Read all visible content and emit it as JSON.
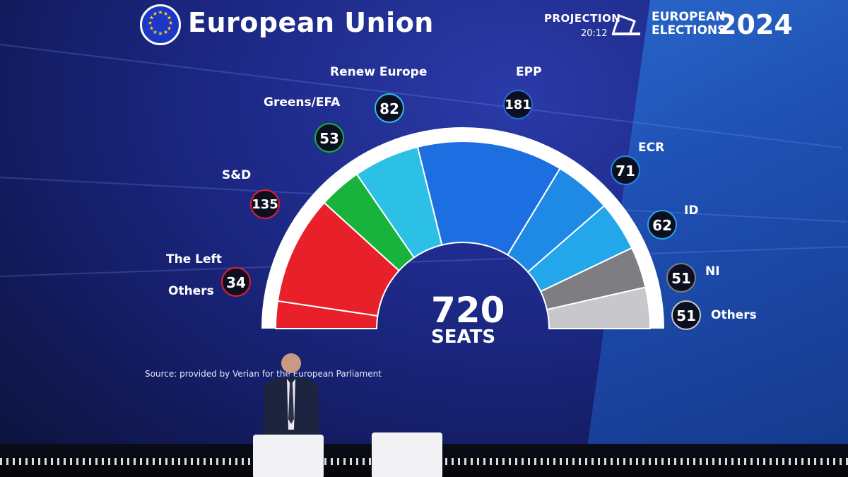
{
  "header": {
    "title": "European Union",
    "projection_label": "PROJECTION",
    "time": "20:12",
    "elections_line1": "EUROPEAN",
    "elections_line2": "ELECTIONS",
    "year": "2024"
  },
  "parliament": {
    "total_seats": "720",
    "seats_label": "SEATS",
    "source": "Source: provided by Verian for the European Parliament",
    "groups": [
      {
        "name": "The Left",
        "seats": "34",
        "color": "#e8202a"
      },
      {
        "name": "S&D",
        "seats": "135",
        "color": "#e8202a"
      },
      {
        "name": "Greens/EFA",
        "seats": "53",
        "color": "#17b33c"
      },
      {
        "name": "Renew Europe",
        "seats": "82",
        "color": "#2cc0e6"
      },
      {
        "name": "EPP",
        "seats": "181",
        "color": "#1d6ee0"
      },
      {
        "name": "ECR",
        "seats": "71",
        "color": "#1f8ae6"
      },
      {
        "name": "ID",
        "seats": "62",
        "color": "#23a6ea"
      },
      {
        "name": "NI",
        "seats": "51",
        "color": "#7d7d82"
      },
      {
        "name": "Others",
        "seats": "51",
        "color": "#c8c8cc"
      }
    ],
    "others_left_label": "Others"
  }
}
